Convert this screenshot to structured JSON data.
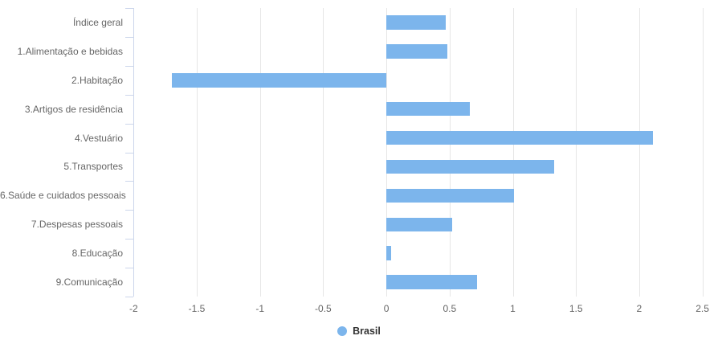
{
  "chart_data": {
    "type": "bar",
    "orientation": "horizontal",
    "title": "",
    "xlabel": "",
    "ylabel": "",
    "categories": [
      "Índice geral",
      "1.Alimentação e bebidas",
      "2.Habitação",
      "3.Artigos de residência",
      "4.Vestuário",
      "5.Transportes",
      "6.Saúde e cuidados pessoais",
      "7.Despesas pessoais",
      "8.Educação",
      "9.Comunicação"
    ],
    "series": [
      {
        "name": "Brasil",
        "color": "#7cb5ec",
        "values": [
          0.47,
          0.48,
          -1.7,
          0.66,
          2.11,
          1.33,
          1.01,
          0.52,
          0.04,
          0.72
        ]
      }
    ],
    "xlim": [
      -2,
      2.5
    ],
    "xticks": [
      "-2",
      "-1.5",
      "-1",
      "-0.5",
      "0",
      "0.5",
      "1",
      "1.5",
      "2",
      "2.5"
    ],
    "grid": true,
    "legend_position": "bottom-center"
  },
  "legend": {
    "label": "Brasil"
  },
  "colors": {
    "bar": "#7cb5ec",
    "gridline": "#e6e6e6",
    "axis_line": "#ccd6eb",
    "axis_label_text": "#666666",
    "legend_text": "#333333",
    "background": "#ffffff"
  }
}
